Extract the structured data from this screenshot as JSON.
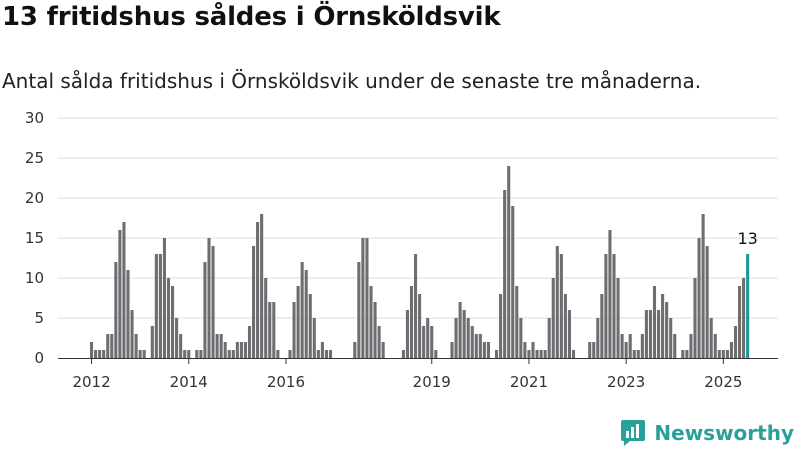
{
  "title": "13 fritidshus såldes i Örnsköldsvik",
  "subtitle": "Antal sålda fritidshus i Örnsköldsvik under de senaste tre månaderna.",
  "brand": {
    "name": "Newsworthy",
    "logo_icon": "bar-chart-speech-icon",
    "color": "#2aa198"
  },
  "colors": {
    "bar": "#6e6e72",
    "highlight": "#1a9b96",
    "grid": "#dddddd"
  },
  "chart_data": {
    "type": "bar",
    "title": "13 fritidshus såldes i Örnsköldsvik",
    "subtitle": "Antal sålda fritidshus i Örnsköldsvik under de senaste tre månaderna.",
    "xlabel": "",
    "ylabel": "",
    "ylim": [
      0,
      30
    ],
    "yticks": [
      0,
      5,
      10,
      15,
      20,
      25,
      30
    ],
    "grid": true,
    "x_start": "2012-01",
    "x_ticks": [
      "2012",
      "2014",
      "2016",
      "2019",
      "2021",
      "2023",
      "2025"
    ],
    "x_tick_indices": [
      0,
      24,
      48,
      84,
      108,
      132,
      156
    ],
    "values": [
      2,
      1,
      1,
      1,
      3,
      3,
      12,
      16,
      17,
      11,
      6,
      3,
      1,
      1,
      0,
      4,
      13,
      13,
      15,
      10,
      9,
      5,
      3,
      1,
      1,
      0,
      1,
      1,
      12,
      15,
      14,
      3,
      3,
      2,
      1,
      1,
      2,
      2,
      2,
      4,
      14,
      17,
      18,
      10,
      7,
      7,
      1,
      0,
      0,
      1,
      7,
      9,
      12,
      11,
      8,
      5,
      1,
      2,
      1,
      1,
      0,
      0,
      0,
      0,
      0,
      2,
      12,
      15,
      15,
      9,
      7,
      4,
      2,
      0,
      0,
      0,
      0,
      1,
      6,
      9,
      13,
      8,
      4,
      5,
      4,
      1,
      0,
      0,
      0,
      2,
      5,
      7,
      6,
      5,
      4,
      3,
      3,
      2,
      2,
      0,
      1,
      8,
      21,
      24,
      19,
      9,
      5,
      2,
      1,
      2,
      1,
      1,
      1,
      5,
      10,
      14,
      13,
      8,
      6,
      1,
      0,
      0,
      0,
      2,
      2,
      5,
      8,
      13,
      16,
      13,
      10,
      3,
      2,
      3,
      1,
      1,
      3,
      6,
      6,
      9,
      6,
      8,
      7,
      5,
      3,
      0,
      1,
      1,
      3,
      10,
      15,
      18,
      14,
      5,
      3,
      1,
      1,
      1,
      2,
      4,
      9,
      10,
      13
    ],
    "highlight_last": true,
    "annotation": {
      "label": "13",
      "target": "last"
    }
  }
}
